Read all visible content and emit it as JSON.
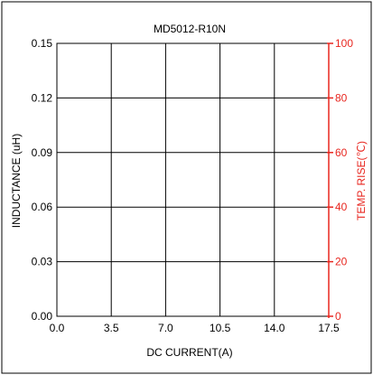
{
  "chart_data": {
    "type": "line",
    "title": "MD5012-R10N",
    "xlabel": "DC CURRENT(A)",
    "ylabel": "INDUCTANCE (uH)",
    "y2label": "TEMP. RISE(℃)",
    "xlim": [
      0,
      17.5
    ],
    "ylim": [
      0,
      0.15
    ],
    "y2lim": [
      0,
      100
    ],
    "x_ticks": [
      "0.0",
      "3.5",
      "7.0",
      "10.5",
      "14.0",
      "17.5"
    ],
    "y_ticks": [
      "0.00",
      "0.03",
      "0.06",
      "0.09",
      "0.12",
      "0.15"
    ],
    "y2_ticks": [
      "0",
      "20",
      "40",
      "60",
      "80",
      "100"
    ],
    "grid": true,
    "series": [],
    "colors": {
      "primary_axis": "#000000",
      "secondary_axis": "#e8261f"
    }
  }
}
